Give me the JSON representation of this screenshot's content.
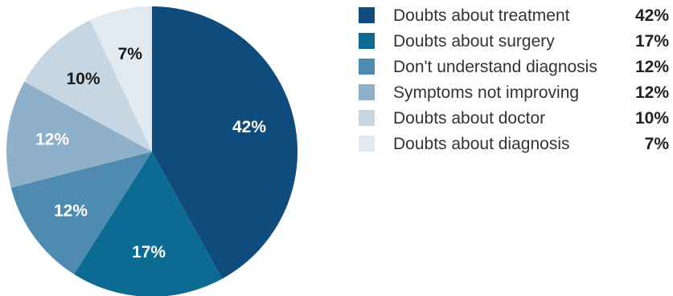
{
  "chart_data": {
    "type": "pie",
    "start": "12 o'clock",
    "direction": "clockwise",
    "slices": [
      {
        "label": "Doubts about treatment",
        "value": 42,
        "display": "42%",
        "color": "#0f4c7d",
        "label_color": "#ffffff"
      },
      {
        "label": "Doubts about surgery",
        "value": 17,
        "display": "17%",
        "color": "#0c6b93",
        "label_color": "#ffffff"
      },
      {
        "label": "Don't understand diagnosis",
        "value": 12,
        "display": "12%",
        "color": "#4f8bb1",
        "label_color": "#ffffff"
      },
      {
        "label": "Symptoms not improving",
        "value": 12,
        "display": "12%",
        "color": "#8fb0cb",
        "label_color": "#ffffff"
      },
      {
        "label": "Doubts about doctor",
        "value": 10,
        "display": "10%",
        "color": "#c6d6e3",
        "label_color": "#1a1a1a"
      },
      {
        "label": "Doubts about diagnosis",
        "value": 7,
        "display": "7%",
        "color": "#e1eaf0",
        "label_color": "#1a1a1a"
      }
    ],
    "legend_position": "right"
  }
}
